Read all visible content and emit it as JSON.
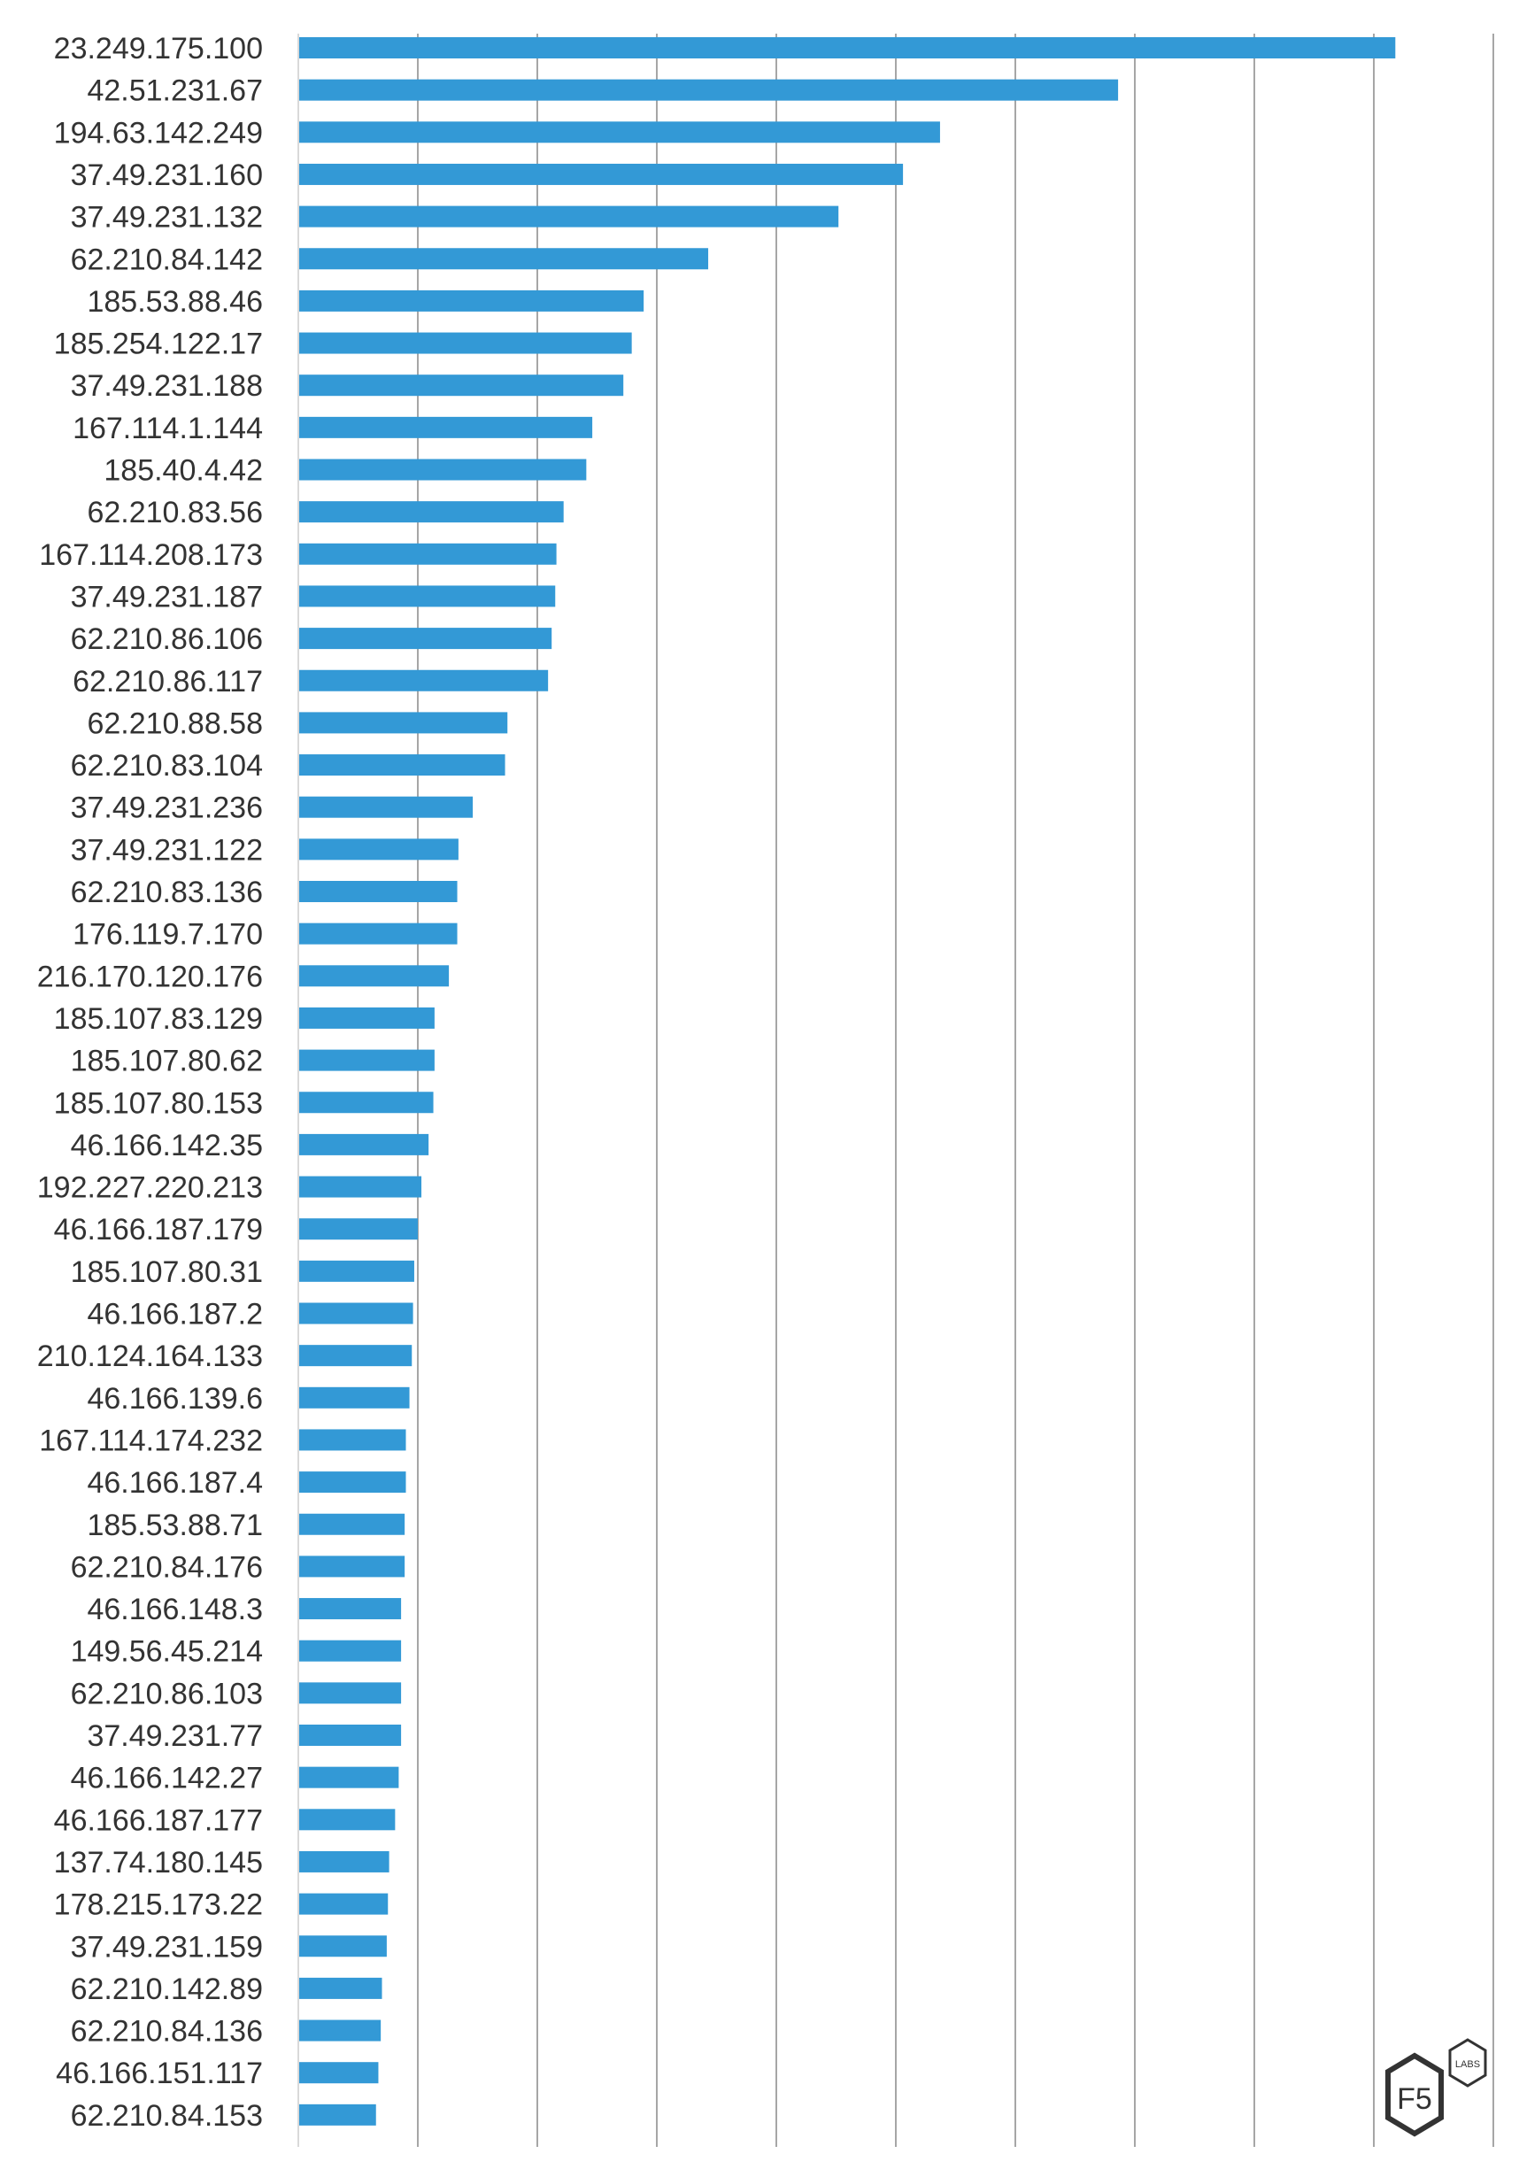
{
  "chart_data": {
    "type": "bar",
    "orientation": "horizontal",
    "title": "",
    "xlabel": "",
    "ylabel": "",
    "xlim": [
      0,
      10
    ],
    "x_units_note": "values expressed in gridline units (no tick labels shown)",
    "grid": true,
    "legend": "none",
    "bar_color": "#3399d6",
    "categories": [
      "23.249.175.100",
      "42.51.231.67",
      "194.63.142.249",
      "37.49.231.160",
      "37.49.231.132",
      "62.210.84.142",
      "185.53.88.46",
      "185.254.122.17",
      "37.49.231.188",
      "167.114.1.144",
      "185.40.4.42",
      "62.210.83.56",
      "167.114.208.173",
      "37.49.231.187",
      "62.210.86.106",
      "62.210.86.117",
      "62.210.88.58",
      "62.210.83.104",
      "37.49.231.236",
      "37.49.231.122",
      "62.210.83.136",
      "176.119.7.170",
      "216.170.120.176",
      "185.107.83.129",
      "185.107.80.62",
      "185.107.80.153",
      "46.166.142.35",
      "192.227.220.213",
      "46.166.187.179",
      "185.107.80.31",
      "46.166.187.2",
      "210.124.164.133",
      "46.166.139.6",
      "167.114.174.232",
      "46.166.187.4",
      "185.53.88.71",
      "62.210.84.176",
      "46.166.148.3",
      "149.56.45.214",
      "62.210.86.103",
      "37.49.231.77",
      "46.166.142.27",
      "46.166.187.177",
      "137.74.180.145",
      "178.215.173.22",
      "37.49.231.159",
      "62.210.142.89",
      "62.210.84.136",
      "46.166.151.117",
      "62.210.84.153"
    ],
    "values": [
      9.18,
      6.86,
      5.37,
      5.06,
      4.52,
      3.43,
      2.89,
      2.79,
      2.72,
      2.46,
      2.41,
      2.22,
      2.16,
      2.15,
      2.12,
      2.09,
      1.75,
      1.73,
      1.46,
      1.34,
      1.33,
      1.33,
      1.26,
      1.14,
      1.14,
      1.13,
      1.09,
      1.03,
      1.0,
      0.97,
      0.96,
      0.95,
      0.93,
      0.9,
      0.9,
      0.89,
      0.89,
      0.86,
      0.86,
      0.86,
      0.86,
      0.84,
      0.81,
      0.76,
      0.75,
      0.74,
      0.7,
      0.69,
      0.67,
      0.65
    ]
  },
  "logo": {
    "main_text": "F5",
    "badge_text": "LABS"
  }
}
